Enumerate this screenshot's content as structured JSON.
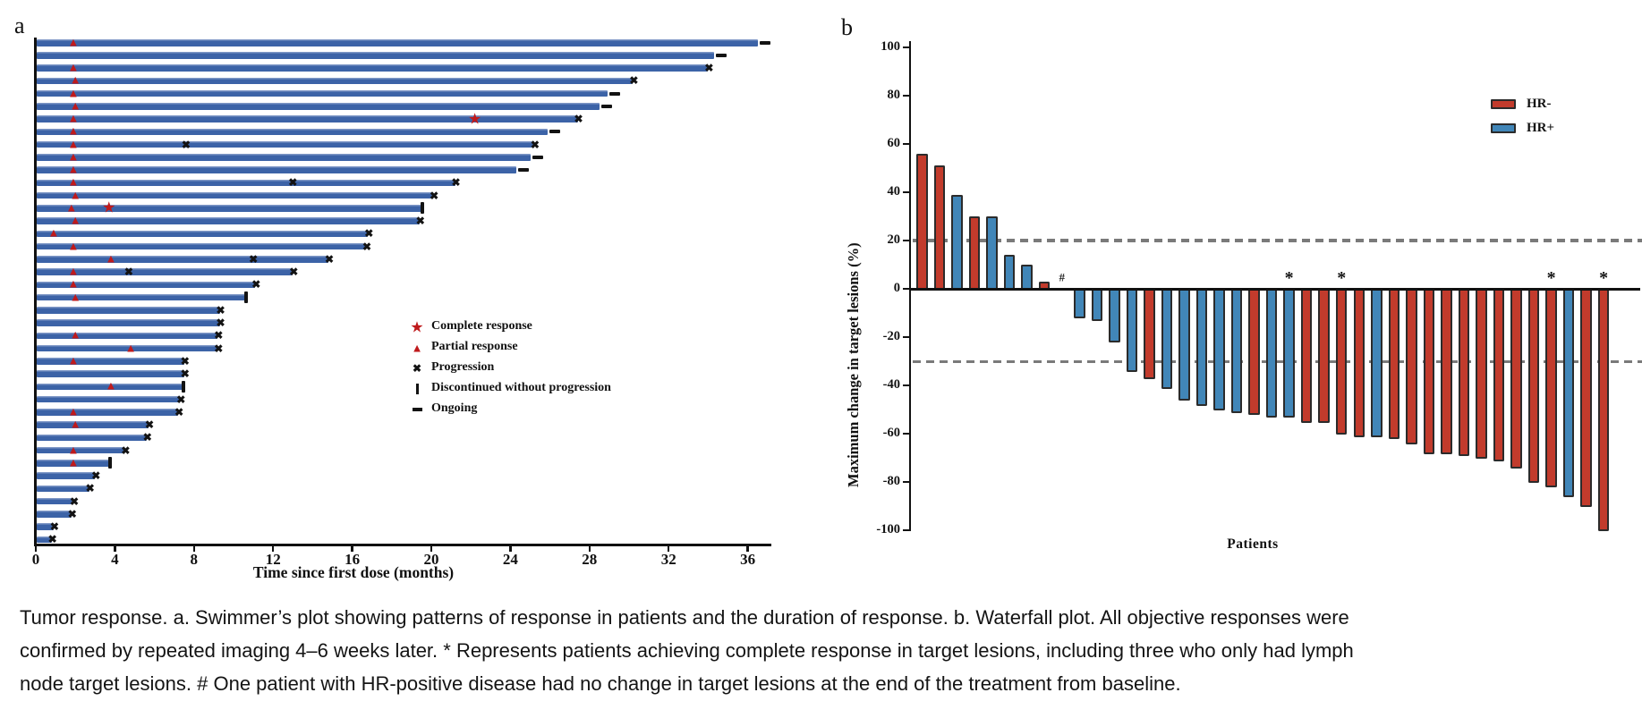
{
  "colors": {
    "swimmer_bar": "#3c63a7",
    "marker_red": "#bf1a1c",
    "marker_black": "#131313",
    "hr_negative_red": "#c23b2c",
    "hr_positive_blue": "#4186b8",
    "bar_border": "#2b2b2b",
    "dashed_gray": "#7a7a7a"
  },
  "caption": {
    "lines": [
      "Tumor response. a. Swimmer’s plot showing patterns of response in patients and the duration of response. b. Waterfall plot. All objective responses were",
      "confirmed by repeated imaging 4–6 weeks later. * Represents patients achieving complete response in target lesions, including three who only had lymph",
      "node target lesions. # One patient with HR-positive disease had no change in target lesions at the end of the treatment from baseline."
    ]
  },
  "chart_data": [
    {
      "type": "swimmer",
      "panel_label": "a",
      "xlabel": "Time since first dose (months)",
      "xlim": [
        0,
        37
      ],
      "x_ticks": [
        0,
        4,
        8,
        12,
        16,
        20,
        24,
        28,
        32,
        36
      ],
      "grid": false,
      "legend_position": "center-right",
      "legend": [
        {
          "sym": "star",
          "label": "Complete response"
        },
        {
          "sym": "triangle",
          "label": "Partial response"
        },
        {
          "sym": "x",
          "label": "Progression"
        },
        {
          "sym": "bar",
          "label": "Discontinued without progression"
        },
        {
          "sym": "dash",
          "label": "Ongoing"
        }
      ],
      "marker_meanings": {
        "star": "Complete response",
        "triangle": "Partial response",
        "x": "Progression",
        "bar": "Discontinued without progression",
        "dash": "Ongoing"
      },
      "patients": [
        {
          "duration": 36.5,
          "end": "ongoing",
          "pr": 1.9
        },
        {
          "duration": 34.3,
          "end": "ongoing"
        },
        {
          "duration": 34.0,
          "end": "progression",
          "pr": 1.9
        },
        {
          "duration": 30.2,
          "end": "progression",
          "pr": 2.0
        },
        {
          "duration": 28.9,
          "end": "ongoing",
          "pr": 1.9
        },
        {
          "duration": 28.5,
          "end": "ongoing",
          "pr": 2.0
        },
        {
          "duration": 27.4,
          "end": "progression",
          "pr": 1.9,
          "cr": 22.2
        },
        {
          "duration": 25.9,
          "end": "ongoing",
          "pr": 1.9
        },
        {
          "duration": 25.2,
          "end": "progression",
          "pr": 1.9,
          "x_mid": 7.6
        },
        {
          "duration": 25.0,
          "end": "ongoing",
          "pr": 1.9
        },
        {
          "duration": 24.3,
          "end": "ongoing",
          "pr": 1.9
        },
        {
          "duration": 21.2,
          "end": "progression",
          "pr": 1.9,
          "x_mid": 13.0
        },
        {
          "duration": 20.1,
          "end": "progression",
          "pr": 2.0
        },
        {
          "duration": 19.5,
          "end": "discontinued",
          "pr": 1.8,
          "cr": 3.7
        },
        {
          "duration": 19.4,
          "end": "progression",
          "pr": 2.0
        },
        {
          "duration": 16.8,
          "end": "progression",
          "pr": 0.9
        },
        {
          "duration": 16.7,
          "end": "progression",
          "pr": 1.9
        },
        {
          "duration": 14.8,
          "end": "progression",
          "pr": 3.8,
          "x_mid": 11.0
        },
        {
          "duration": 13.0,
          "end": "progression",
          "pr": 1.9,
          "x_mid": 4.7
        },
        {
          "duration": 11.1,
          "end": "progression",
          "pr": 1.9
        },
        {
          "duration": 10.6,
          "end": "discontinued",
          "pr": 2.0
        },
        {
          "duration": 9.3,
          "end": "progression"
        },
        {
          "duration": 9.3,
          "end": "progression"
        },
        {
          "duration": 9.2,
          "end": "progression",
          "pr": 2.0
        },
        {
          "duration": 9.2,
          "end": "progression",
          "pr": 4.8
        },
        {
          "duration": 7.5,
          "end": "progression",
          "pr": 1.9
        },
        {
          "duration": 7.5,
          "end": "progression"
        },
        {
          "duration": 7.4,
          "end": "discontinued",
          "pr": 3.8
        },
        {
          "duration": 7.3,
          "end": "progression"
        },
        {
          "duration": 7.2,
          "end": "progression",
          "pr": 1.9
        },
        {
          "duration": 5.7,
          "end": "progression",
          "pr": 2.0
        },
        {
          "duration": 5.6,
          "end": "progression"
        },
        {
          "duration": 4.5,
          "end": "progression",
          "pr": 1.9
        },
        {
          "duration": 3.7,
          "end": "discontinued",
          "pr": 1.9
        },
        {
          "duration": 3.0,
          "end": "progression"
        },
        {
          "duration": 2.7,
          "end": "progression"
        },
        {
          "duration": 1.9,
          "end": "progression"
        },
        {
          "duration": 1.8,
          "end": "progression"
        },
        {
          "duration": 0.9,
          "end": "progression"
        },
        {
          "duration": 0.8,
          "end": "progression"
        }
      ]
    },
    {
      "type": "bar",
      "panel_label": "b",
      "xlabel": "Patients",
      "ylabel": "Maximum change in target lesions (%)",
      "ylim": [
        -100,
        100
      ],
      "y_ticks": [
        100,
        80,
        60,
        40,
        20,
        0,
        -20,
        -40,
        -60,
        -80,
        -100
      ],
      "reference_dashed_lines": [
        20,
        -30
      ],
      "grid": false,
      "legend_position": "top-right",
      "legend": [
        {
          "label": "HR-",
          "group": "HR-"
        },
        {
          "label": "HR+",
          "group": "HR+"
        }
      ],
      "hash_symbol": "#",
      "star_symbol": "*",
      "patients": [
        {
          "value": 56,
          "group": "HR-"
        },
        {
          "value": 51,
          "group": "HR-"
        },
        {
          "value": 39,
          "group": "HR+"
        },
        {
          "value": 30,
          "group": "HR-"
        },
        {
          "value": 30,
          "group": "HR+"
        },
        {
          "value": 14,
          "group": "HR+"
        },
        {
          "value": 10,
          "group": "HR+"
        },
        {
          "value": 3,
          "group": "HR-"
        },
        {
          "value": 0,
          "group": "HR+",
          "hash": true
        },
        {
          "value": -12,
          "group": "HR+"
        },
        {
          "value": -13,
          "group": "HR+"
        },
        {
          "value": -22,
          "group": "HR+"
        },
        {
          "value": -34,
          "group": "HR+"
        },
        {
          "value": -37,
          "group": "HR-"
        },
        {
          "value": -41,
          "group": "HR+"
        },
        {
          "value": -46,
          "group": "HR+"
        },
        {
          "value": -48,
          "group": "HR+"
        },
        {
          "value": -50,
          "group": "HR+"
        },
        {
          "value": -51,
          "group": "HR+"
        },
        {
          "value": -52,
          "group": "HR-"
        },
        {
          "value": -53,
          "group": "HR+"
        },
        {
          "value": -53,
          "group": "HR+",
          "star": true
        },
        {
          "value": -55,
          "group": "HR-"
        },
        {
          "value": -55,
          "group": "HR-"
        },
        {
          "value": -60,
          "group": "HR-",
          "star": true
        },
        {
          "value": -61,
          "group": "HR-"
        },
        {
          "value": -61,
          "group": "HR+"
        },
        {
          "value": -62,
          "group": "HR-"
        },
        {
          "value": -64,
          "group": "HR-"
        },
        {
          "value": -68,
          "group": "HR-"
        },
        {
          "value": -68,
          "group": "HR-"
        },
        {
          "value": -69,
          "group": "HR-"
        },
        {
          "value": -70,
          "group": "HR-"
        },
        {
          "value": -71,
          "group": "HR-"
        },
        {
          "value": -74,
          "group": "HR-"
        },
        {
          "value": -80,
          "group": "HR-"
        },
        {
          "value": -82,
          "group": "HR-",
          "star": true
        },
        {
          "value": -86,
          "group": "HR+"
        },
        {
          "value": -90,
          "group": "HR-"
        },
        {
          "value": -100,
          "group": "HR-",
          "star": true
        }
      ]
    }
  ]
}
